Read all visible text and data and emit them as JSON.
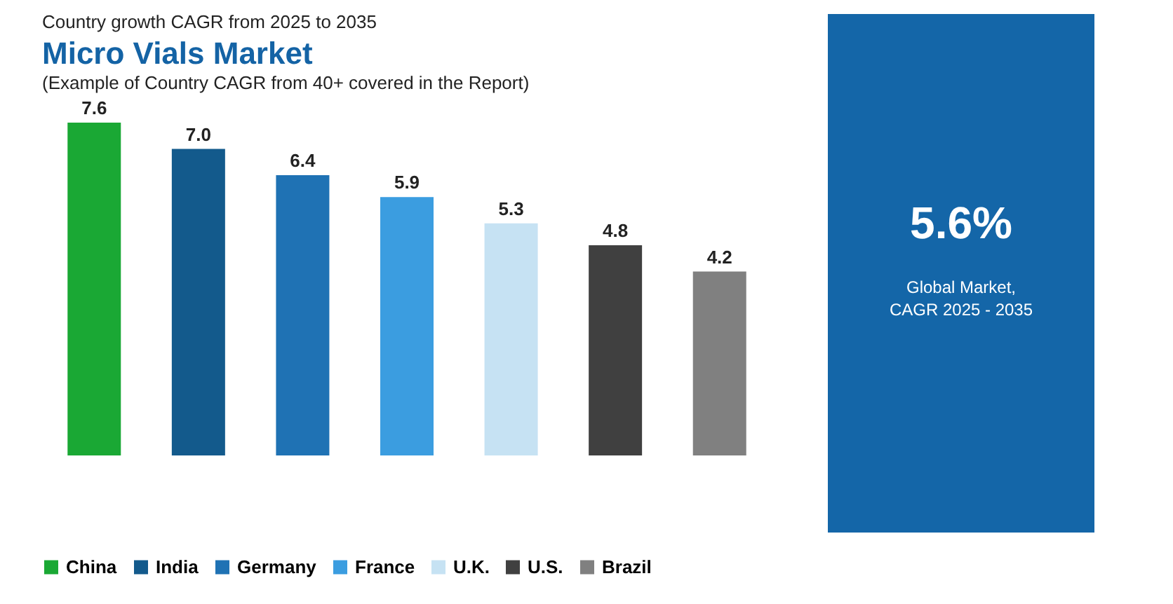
{
  "chart_data": {
    "type": "bar",
    "title": "Micro Vials Market",
    "subtitle": "(Example of Country CAGR from 40+ covered in the Report)",
    "annotations": [
      "Country growth CAGR from 2025 to 2035",
      "5.6%",
      "Global Market,",
      "CAGR 2025 - 2035"
    ],
    "categories": [
      null,
      null,
      null,
      null,
      null,
      null,
      null
    ],
    "series": [
      {
        "name": "China",
        "color": "#1aa834",
        "values": [
          7.6,
          null,
          null,
          null,
          null,
          null,
          null
        ],
        "value_labels": [
          "7.6",
          null,
          null,
          null,
          null,
          null,
          null
        ]
      },
      {
        "name": "India",
        "color": "#135a8c",
        "values": [
          null,
          7.0,
          null,
          null,
          null,
          null,
          null
        ],
        "value_labels": [
          null,
          "7.0",
          null,
          null,
          null,
          null,
          null
        ]
      },
      {
        "name": "Germany",
        "color": "#1f72b4",
        "values": [
          null,
          null,
          6.4,
          null,
          null,
          null,
          null
        ],
        "value_labels": [
          null,
          null,
          "6.4",
          null,
          null,
          null,
          null
        ]
      },
      {
        "name": "France",
        "color": "#3b9de0",
        "values": [
          null,
          null,
          null,
          5.9,
          null,
          null,
          null
        ],
        "value_labels": [
          null,
          null,
          null,
          "5.9",
          null,
          null,
          null
        ]
      },
      {
        "name": "U.K.",
        "color": "#c6e2f3",
        "values": [
          null,
          null,
          null,
          null,
          5.3,
          null,
          null
        ],
        "value_labels": [
          null,
          null,
          null,
          null,
          "5.3",
          null,
          null
        ]
      },
      {
        "name": "U.S.",
        "color": "#404040",
        "values": [
          null,
          null,
          null,
          null,
          null,
          4.8,
          null
        ],
        "value_labels": [
          null,
          null,
          null,
          null,
          null,
          "4.8",
          null
        ]
      },
      {
        "name": "Brazil",
        "color": "#808080",
        "values": [
          null,
          null,
          null,
          null,
          null,
          null,
          4.2
        ],
        "value_labels": [
          null,
          null,
          null,
          null,
          null,
          null,
          "4.2"
        ]
      }
    ],
    "stacked": true,
    "legend": "bottom",
    "tick_labels": false
  }
}
